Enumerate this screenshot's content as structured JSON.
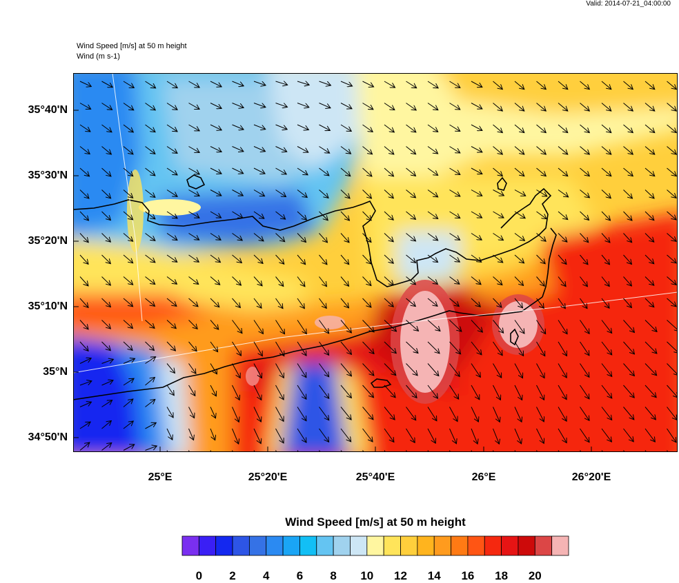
{
  "header": {
    "valid": "Valid: 2014-07-21_04:00:00",
    "title": "Wind Speed [m/s] at 50 m height",
    "subtitle": "Wind   (m s-1)"
  },
  "map": {
    "lat_labels": [
      "35°40'N",
      "35°30'N",
      "35°20'N",
      "35°10'N",
      "35°N",
      "34°50'N"
    ],
    "lon_labels": [
      "25°E",
      "25°20'E",
      "25°40'E",
      "26°E",
      "26°20'E"
    ]
  },
  "colorbar": {
    "title": "Wind Speed [m/s] at 50 m height",
    "labels": [
      "0",
      "2",
      "4",
      "6",
      "8",
      "10",
      "12",
      "14",
      "16",
      "18",
      "20"
    ],
    "colors": [
      "#7a2ff0",
      "#3a1ff5",
      "#1428f0",
      "#2d55e6",
      "#3572e6",
      "#2b8af2",
      "#1aa5f5",
      "#12bff5",
      "#64c4f2",
      "#a0d2ee",
      "#cde6f5",
      "#fff6a0",
      "#ffe45a",
      "#ffcf3c",
      "#ffb41e",
      "#ff9b1e",
      "#ff7a14",
      "#ff5514",
      "#f5280f",
      "#e61414",
      "#cd0a0a",
      "#dc4646",
      "#f5b4b4"
    ]
  }
}
